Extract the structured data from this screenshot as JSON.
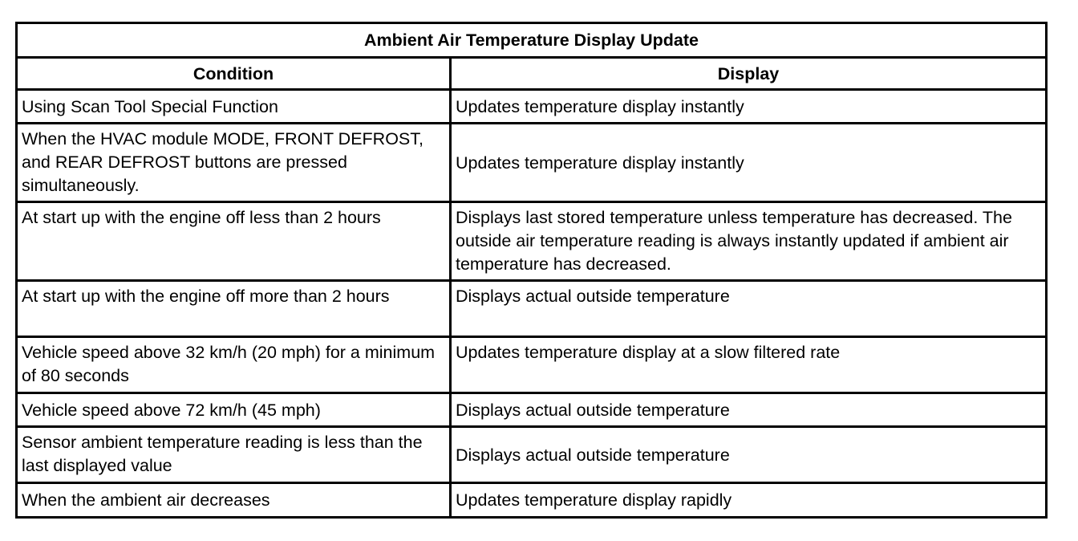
{
  "table": {
    "title": "Ambient Air Temperature Display Update",
    "header": [
      "Condition",
      "Display"
    ],
    "rows": [
      [
        "Using Scan Tool Special Function",
        "Updates temperature display instantly"
      ],
      [
        "When the HVAC module MODE, FRONT DEFROST, and REAR DEFROST buttons are pressed simultaneously.",
        "Updates temperature display instantly"
      ],
      [
        "At start up with the engine off less than 2 hours",
        "Displays last stored temperature unless temperature has decreased. The outside air temperature reading is always instantly updated if ambient air temperature has decreased."
      ],
      [
        "At start up with the engine off more than 2 hours",
        "Displays actual outside temperature"
      ],
      [
        "Vehicle speed above 32 km/h (20 mph) for a minimum of 80 seconds",
        "Updates temperature display at a slow filtered rate"
      ],
      [
        "Vehicle speed above 72 km/h (45 mph)",
        "Displays actual outside temperature"
      ],
      [
        "Sensor ambient temperature reading is less than the last displayed value",
        "Displays actual outside temperature"
      ],
      [
        "When the ambient air decreases",
        "Updates temperature display rapidly"
      ]
    ]
  }
}
